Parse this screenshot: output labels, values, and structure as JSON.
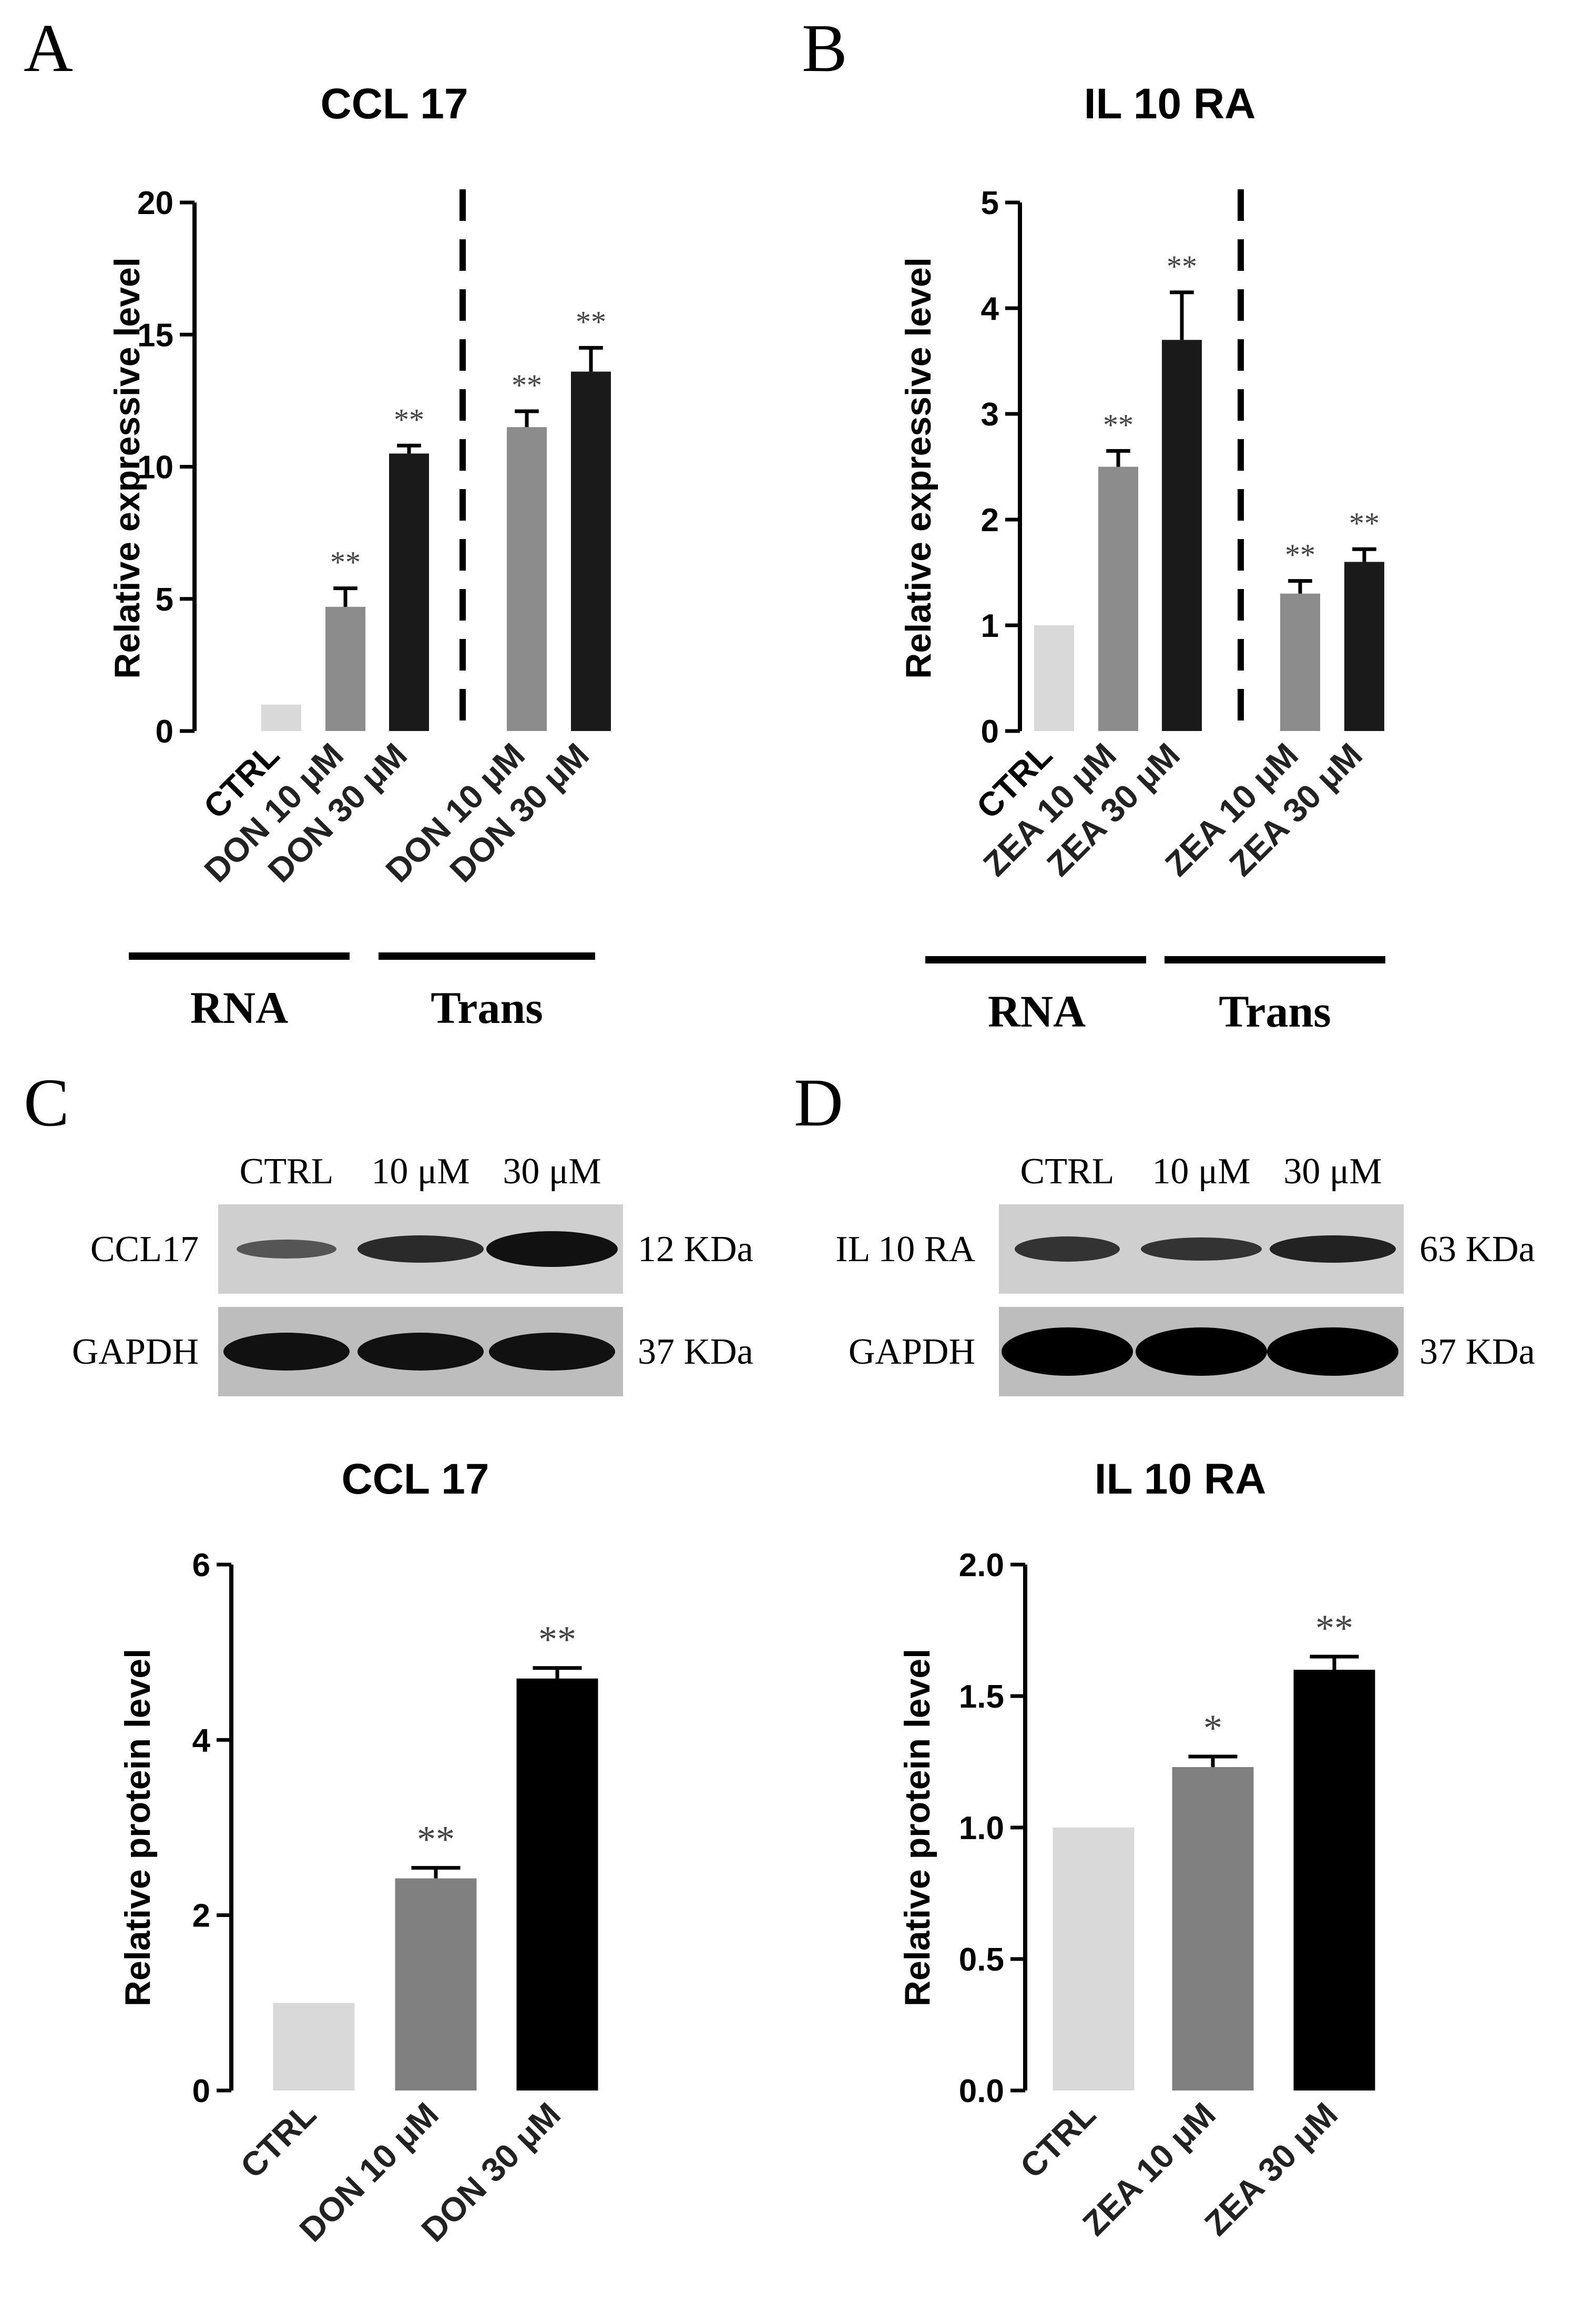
{
  "panels": {
    "A": {
      "letter": "A",
      "chart_data": {
        "type": "bar",
        "title": "CCL 17",
        "ylabel": "Relative expressive level",
        "ylim": [
          0,
          20
        ],
        "yticks": [
          "0",
          "5",
          "10",
          "15",
          "20"
        ],
        "categories": [
          "CTRL",
          "DON 10 μM",
          "DON 30 μM",
          "DON 10 μM",
          "DON 30 μM"
        ],
        "values": [
          1.0,
          4.7,
          10.5,
          11.5,
          13.6
        ],
        "errors": [
          0,
          0.7,
          0.3,
          0.6,
          0.9
        ],
        "significance": [
          "",
          "**",
          "**",
          "**",
          "**"
        ],
        "bar_colors": [
          "#d9d9d9",
          "#8c8c8c",
          "#1a1a1a",
          "#8c8c8c",
          "#1a1a1a"
        ],
        "groups": [
          "RNA",
          "Trans"
        ]
      }
    },
    "B": {
      "letter": "B",
      "chart_data": {
        "type": "bar",
        "title": "IL 10 RA",
        "ylabel": "Relative expressive level",
        "ylim": [
          0,
          5
        ],
        "yticks": [
          "0",
          "1",
          "2",
          "3",
          "4",
          "5"
        ],
        "categories": [
          "CTRL",
          "ZEA 10 μM",
          "ZEA 30 μM",
          "ZEA 10 μM",
          "ZEA 30 μM"
        ],
        "values": [
          1.0,
          2.5,
          3.7,
          1.3,
          1.6
        ],
        "errors": [
          0,
          0.15,
          0.45,
          0.12,
          0.12
        ],
        "significance": [
          "",
          "**",
          "**",
          "**",
          "**"
        ],
        "bar_colors": [
          "#d9d9d9",
          "#8c8c8c",
          "#1a1a1a",
          "#8c8c8c",
          "#1a1a1a"
        ],
        "groups": [
          "RNA",
          "Trans"
        ]
      }
    },
    "C": {
      "letter": "C",
      "blot": {
        "lanes": [
          "CTRL",
          "10 μM",
          "30 μM"
        ],
        "rows": [
          {
            "protein": "CCL17",
            "size": "12 KDa"
          },
          {
            "protein": "GAPDH",
            "size": "37 KDa"
          }
        ]
      },
      "chart_data": {
        "type": "bar",
        "title": "CCL 17",
        "ylabel": "Relative protein level",
        "ylim": [
          0,
          6
        ],
        "yticks": [
          "0",
          "2",
          "4",
          "6"
        ],
        "categories": [
          "CTRL",
          "DON 10 μM",
          "DON 30 μM"
        ],
        "values": [
          1.0,
          2.42,
          4.7
        ],
        "errors": [
          0,
          0.12,
          0.12
        ],
        "significance": [
          "",
          "**",
          "**"
        ],
        "bar_colors": [
          "#d9d9d9",
          "#808080",
          "#000000"
        ]
      }
    },
    "D": {
      "letter": "D",
      "blot": {
        "lanes": [
          "CTRL",
          "10 μM",
          "30 μM"
        ],
        "rows": [
          {
            "protein": "IL 10 RA",
            "size": "63 KDa"
          },
          {
            "protein": "GAPDH",
            "size": "37 KDa"
          }
        ]
      },
      "chart_data": {
        "type": "bar",
        "title": "IL 10 RA",
        "ylabel": "Relative protein level",
        "ylim": [
          0,
          2.0
        ],
        "yticks": [
          "0.0",
          "0.5",
          "1.0",
          "1.5",
          "2.0"
        ],
        "categories": [
          "CTRL",
          "ZEA 10 μM",
          "ZEA 30 μM"
        ],
        "values": [
          1.0,
          1.23,
          1.6
        ],
        "errors": [
          0,
          0.04,
          0.05
        ],
        "significance": [
          "",
          "*",
          "**"
        ],
        "bar_colors": [
          "#d9d9d9",
          "#808080",
          "#000000"
        ]
      }
    }
  }
}
